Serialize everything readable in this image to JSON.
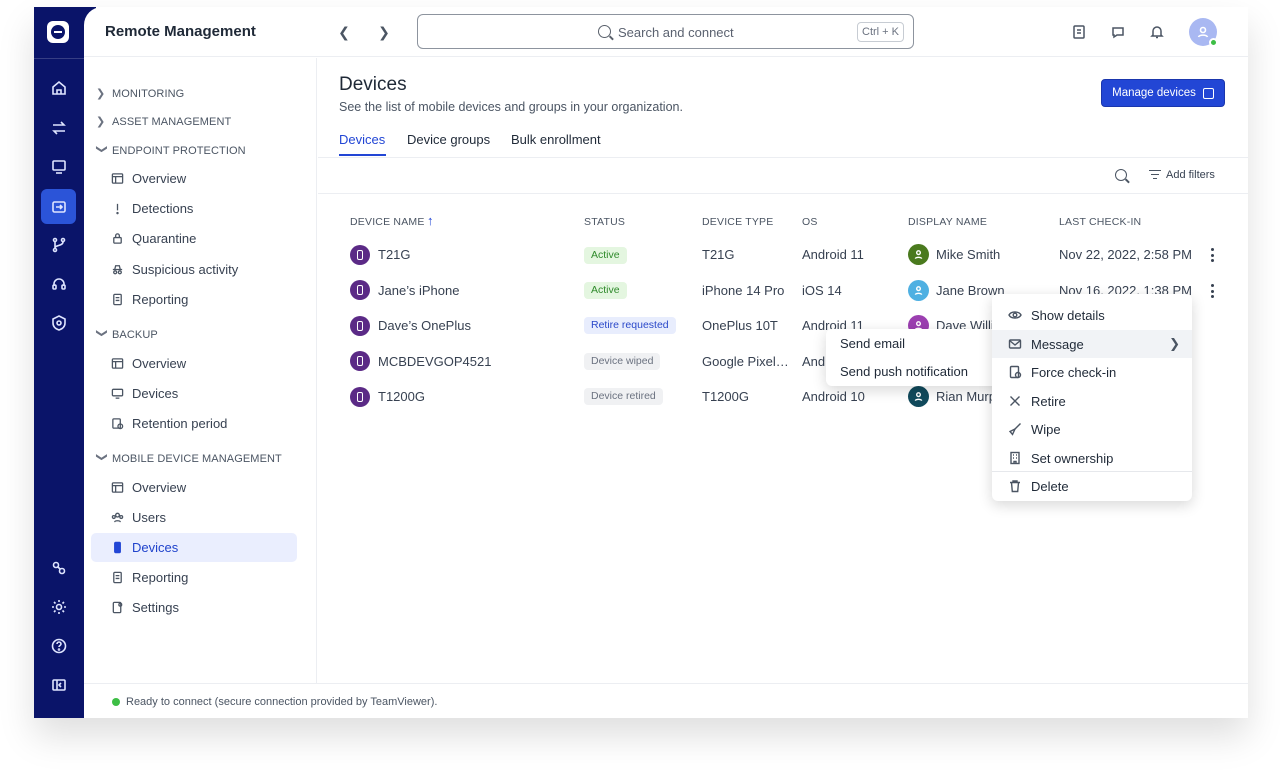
{
  "header": {
    "title": "Remote Management",
    "search_placeholder": "Search and connect",
    "search_shortcut": "Ctrl + K"
  },
  "sidebar": {
    "sections": [
      {
        "label": "MONITORING"
      },
      {
        "label": "ASSET MANAGEMENT"
      },
      {
        "label": "ENDPOINT PROTECTION",
        "items": [
          "Overview",
          "Detections",
          "Quarantine",
          "Suspicious activity",
          "Reporting"
        ]
      },
      {
        "label": "BACKUP",
        "items": [
          "Overview",
          "Devices",
          "Retention period"
        ]
      },
      {
        "label": "MOBILE DEVICE MANAGEMENT",
        "items": [
          "Overview",
          "Users",
          "Devices",
          "Reporting",
          "Settings"
        ]
      }
    ]
  },
  "main": {
    "title": "Devices",
    "subtitle": "See the list of mobile devices and groups in your organization.",
    "manage_button": "Manage devices",
    "tabs": [
      "Devices",
      "Device groups",
      "Bulk enrollment"
    ],
    "add_filters": "Add filters"
  },
  "table": {
    "columns": [
      "DEVICE NAME",
      "STATUS",
      "DEVICE TYPE",
      "OS",
      "DISPLAY NAME",
      "LAST CHECK-IN"
    ],
    "rows": [
      {
        "name": "T21G",
        "status": "Active",
        "type": "T21G",
        "os": "Android 11",
        "display": "Mike Smith",
        "checkin": "Nov 22, 2022, 2:58 PM"
      },
      {
        "name": "Jane’s iPhone",
        "status": "Active",
        "type": "iPhone 14 Pro",
        "os": "iOS 14",
        "display": "Jane Brown",
        "checkin": "Nov 16, 2022, 1:38 PM"
      },
      {
        "name": "Dave’s OnePlus",
        "status": "Retire requested",
        "type": "OnePlus 10T",
        "os": "Android 11",
        "display": "Dave Williams",
        "checkin": ""
      },
      {
        "name": "MCBDEVGOP4521",
        "status": "Device wiped",
        "type": "Google Pixel…",
        "os": "Andr",
        "display": "",
        "checkin": ""
      },
      {
        "name": "T1200G",
        "status": "Device retired",
        "type": "T1200G",
        "os": "Android 10",
        "display": "Rian Murphy",
        "checkin": ""
      }
    ],
    "status_colors": {
      "Active": {
        "bg": "#e4f6e0",
        "fg": "#2f8a2b"
      },
      "Retire requested": {
        "bg": "#e8edfd",
        "fg": "#2a48c9"
      },
      "Device wiped": {
        "bg": "#f0f1f3",
        "fg": "#6b7280"
      },
      "Device retired": {
        "bg": "#f0f1f3",
        "fg": "#6b7280"
      }
    },
    "avatar_colors": [
      "#4a7a1e",
      "#4fb0e2",
      "#9b3fb0",
      "#9b3fb0",
      "#114a5c"
    ]
  },
  "context_menu": {
    "items": [
      "Show details",
      "Message",
      "Force check-in",
      "Retire",
      "Wipe",
      "Set ownership",
      "Delete"
    ],
    "submenu": [
      "Send email",
      "Send push notification"
    ]
  },
  "status_bar": {
    "text": "Ready to connect (secure connection provided by TeamViewer)."
  }
}
